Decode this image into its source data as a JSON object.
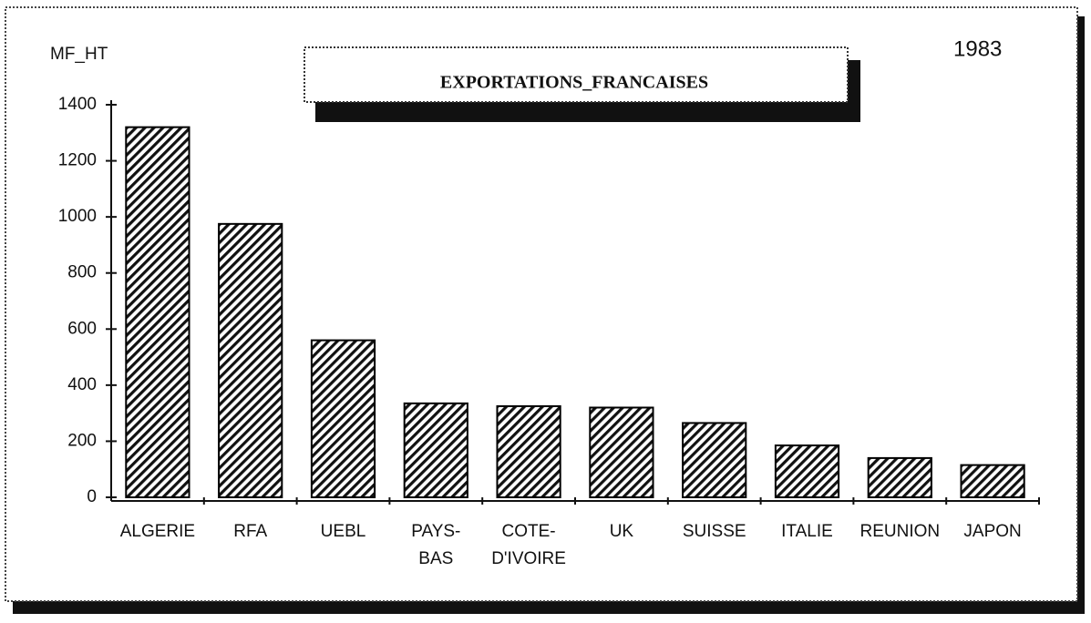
{
  "chart_data": {
    "type": "bar",
    "title": "EXPORTATIONS_FRANCAISES",
    "y_label": "MF_HT",
    "annotation": "1983",
    "categories": [
      [
        "ALGERIE"
      ],
      [
        "RFA"
      ],
      [
        "UEBL"
      ],
      [
        "PAYS-",
        "BAS"
      ],
      [
        "COTE-",
        "D'IVOIRE"
      ],
      [
        "UK"
      ],
      [
        "SUISSE"
      ],
      [
        "ITALIE"
      ],
      [
        "REUNION"
      ],
      [
        "JAPON"
      ]
    ],
    "values": [
      1320,
      975,
      560,
      335,
      325,
      320,
      265,
      185,
      140,
      115
    ],
    "color": "#000000",
    "ylim": [
      0,
      1400
    ],
    "yticks": [
      0,
      200,
      400,
      600,
      800,
      1000,
      1200,
      1400
    ],
    "grid": false
  }
}
